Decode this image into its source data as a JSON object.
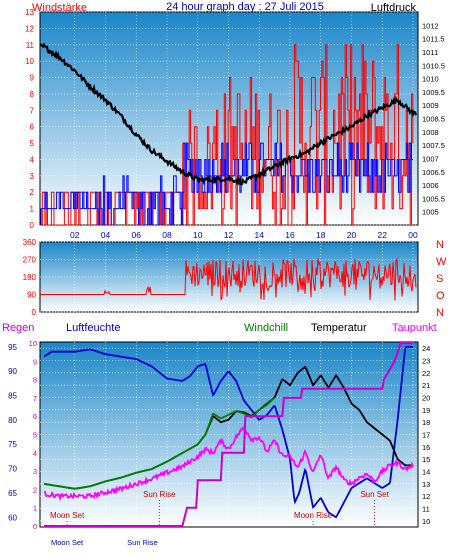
{
  "header": {
    "left_label": "Windstärke",
    "title": "24 hour graph day : 27 Juli 2015",
    "right_label": "Luftdruck"
  },
  "colors": {
    "wind": "#ff0000",
    "gust": "#0000ff",
    "pressure": "#000000",
    "direction": "#ff0000",
    "humidity": "#0000cc",
    "windchill": "#008000",
    "temperature": "#000000",
    "dewpoint": "#ff00ff",
    "rain": "#cc00cc",
    "sky_top": "#1a86c9",
    "sky_bottom": "#ffffff",
    "frame": "#000000"
  },
  "bottom_legend": {
    "regen": "Regen",
    "luftfeuchte": "Luftfeuchte",
    "windchill": "Windchill",
    "temperatur": "Temperatur",
    "taupunkt": "Taupunkt"
  },
  "chart_data": [
    {
      "type": "line",
      "title": "24 hour graph day : 27 Juli 2015",
      "ylabel": "Windstärke",
      "y2label": "Luftdruck",
      "x_ticks": [
        "02",
        "04",
        "06",
        "08",
        "10",
        "12",
        "14",
        "16",
        "18",
        "20",
        "22",
        "00"
      ],
      "ylim": [
        0,
        13
      ],
      "y_ticks": [
        0,
        1,
        2,
        3,
        4,
        5,
        6,
        7,
        8,
        9,
        10,
        11,
        12,
        13
      ],
      "y2lim": [
        1004.5,
        1012.5
      ],
      "y2_ticks": [
        "1005",
        "1005.5",
        "1006",
        "1006.5",
        "1007",
        "1007.5",
        "1008",
        "1008.5",
        "1009",
        "1009.5",
        "1010",
        "1010.5",
        "1011",
        "1011.5",
        "1012"
      ],
      "series": [
        {
          "name": "Luftdruck",
          "axis": "right",
          "x": [
            0,
            1,
            2,
            3,
            4,
            5,
            6,
            7,
            8,
            9,
            10,
            11,
            12,
            13,
            14,
            15,
            16,
            17,
            18,
            19,
            20,
            21,
            22,
            23,
            24
          ],
          "values": [
            1011.2,
            1010.8,
            1010.3,
            1009.7,
            1009.2,
            1008.6,
            1007.9,
            1007.3,
            1006.9,
            1006.5,
            1006.2,
            1006.2,
            1006.25,
            1006.1,
            1006.4,
            1006.7,
            1007.0,
            1007.2,
            1007.6,
            1007.9,
            1008.2,
            1008.6,
            1008.9,
            1009.2,
            1008.7
          ]
        }
      ]
    },
    {
      "type": "scatter",
      "ylabel_right": [
        "N",
        "W",
        "S",
        "O",
        "N"
      ],
      "ylim": [
        0,
        360
      ],
      "y_ticks": [
        0,
        90,
        180,
        270,
        360
      ]
    },
    {
      "type": "line",
      "y_ticks_rain": [
        0,
        1,
        2,
        3,
        4,
        5,
        6,
        7,
        8,
        9,
        10
      ],
      "y_ticks_humidity": [
        60,
        65,
        70,
        75,
        80,
        85,
        90,
        95
      ],
      "y_ticks_temp": [
        10,
        11,
        12,
        13,
        14,
        15,
        16,
        17,
        18,
        19,
        20,
        21,
        22,
        23,
        24
      ],
      "ylim_rain": [
        0,
        10
      ],
      "ylim_humidity": [
        58,
        96
      ],
      "ylim_temp": [
        9.5,
        24.5
      ],
      "series": [
        {
          "name": "Luftfeuchte",
          "axis": "humidity",
          "x": [
            0,
            0.5,
            1,
            2,
            3,
            4,
            5,
            6,
            7,
            8,
            9,
            9.5,
            10,
            10.5,
            11,
            11.5,
            12,
            12.5,
            13,
            13.5,
            14,
            14.5,
            15,
            15.5,
            16,
            16.3,
            16.6,
            17,
            17.5,
            18,
            18.5,
            19,
            19.5,
            20,
            20.5,
            21,
            21.5,
            22,
            22.5,
            23,
            23.5,
            24
          ],
          "values": [
            93,
            94,
            94,
            94,
            94.5,
            93.5,
            93,
            92.5,
            91,
            88.5,
            88,
            89,
            91,
            91.5,
            85,
            88,
            90,
            88,
            84,
            82,
            80,
            81,
            83,
            78,
            72,
            63,
            65,
            70,
            62,
            64,
            61,
            60,
            63,
            66,
            67,
            68,
            67,
            66,
            67,
            80,
            95,
            95
          ]
        },
        {
          "name": "Temperatur",
          "axis": "temp",
          "x": [
            0,
            1,
            2,
            3,
            4,
            5,
            6,
            7,
            8,
            9,
            10,
            10.5,
            11,
            11.5,
            12,
            12.5,
            13,
            13.5,
            14,
            15,
            15.5,
            16,
            16.5,
            17,
            17.5,
            18,
            18.5,
            19,
            19.5,
            20,
            20.5,
            21,
            21.5,
            22,
            22.5,
            23,
            23.5,
            24
          ],
          "values": [
            13,
            12.8,
            12.6,
            12.8,
            13.2,
            13.5,
            13.9,
            14.2,
            14.8,
            15.5,
            16.2,
            17.0,
            18.5,
            18.0,
            18.2,
            18.9,
            18.8,
            18.5,
            19.0,
            20.0,
            21.5,
            21.0,
            22.0,
            22.5,
            21.0,
            21.8,
            20.8,
            21.8,
            20.8,
            19.5,
            19.0,
            18.0,
            17.5,
            17.0,
            16.5,
            15.0,
            14.5,
            14.5
          ]
        },
        {
          "name": "Windchill",
          "axis": "temp",
          "x": [
            0,
            1,
            2,
            3,
            4,
            5,
            6,
            7,
            8,
            9,
            10,
            10.5,
            11,
            11.5,
            12,
            12.5,
            13,
            13.5,
            14,
            14.5,
            15
          ],
          "values": [
            13,
            12.8,
            12.6,
            12.8,
            13.2,
            13.5,
            13.9,
            14.2,
            14.8,
            15.5,
            16.2,
            17.0,
            18.7,
            18.3,
            18.6,
            18.9,
            18.7,
            18.4,
            19.0,
            19.4,
            20.0
          ]
        },
        {
          "name": "Taupunkt",
          "axis": "temp",
          "x": [
            0,
            1,
            2,
            3,
            4,
            5,
            6,
            7,
            8,
            9,
            10,
            10.5,
            11,
            11.5,
            12,
            12.5,
            13,
            13.5,
            14,
            14.5,
            15,
            15.5,
            16,
            16.5,
            17,
            17.5,
            18,
            18.5,
            19,
            19.5,
            20,
            20.5,
            21,
            21.5,
            22,
            22.5,
            23,
            23.5,
            24
          ],
          "values": [
            12.2,
            12.0,
            12.0,
            12.0,
            12.3,
            12.6,
            13.0,
            13.4,
            13.9,
            14.4,
            15.2,
            15.8,
            15.5,
            16.5,
            15.8,
            16.8,
            17.6,
            16.6,
            16.8,
            15.6,
            16.5,
            15.3,
            15.2,
            14.3,
            15.6,
            13.9,
            15.4,
            13.4,
            14.4,
            13.3,
            13.0,
            13.5,
            13.8,
            13.2,
            14.0,
            14.5,
            14.7,
            14.2,
            14.5
          ]
        },
        {
          "name": "Regen",
          "axis": "rain",
          "x": [
            0,
            9,
            9.3,
            9.9,
            10.0,
            11.5,
            11.6,
            13.0,
            13.1,
            15.5,
            15.6,
            16.7,
            16.8,
            22.0,
            22.1,
            22.8,
            23.2,
            23.6,
            24
          ],
          "values": [
            0,
            0,
            1,
            1,
            2.5,
            2.5,
            4,
            4,
            6,
            6,
            7,
            7,
            7.5,
            7.5,
            8,
            9,
            10,
            10,
            10
          ]
        }
      ],
      "annotations": [
        {
          "text": "Moon Set",
          "x": 1.5
        },
        {
          "text": "Sun Rise",
          "x": 7.5
        },
        {
          "text": "Moon Rise",
          "x": 17.5
        },
        {
          "text": "Sun Set",
          "x": 21.5
        },
        {
          "text": "Moon Set",
          "x": 1.5,
          "row": "bottom"
        },
        {
          "text": "Sun Rise",
          "x": 6.4,
          "row": "bottom"
        }
      ]
    }
  ]
}
